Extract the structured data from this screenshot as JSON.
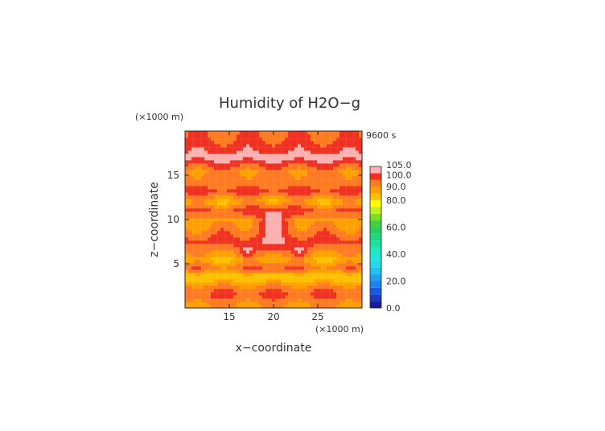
{
  "chart_data": {
    "type": "heatmap",
    "title": "Humidity of H2O−g",
    "xlabel": "x−coordinate",
    "ylabel": "z−coordinate",
    "x_unit_label": "(×1000 m)",
    "y_unit_label": "(×1000 m)",
    "time_label": "9600 s",
    "xlim": [
      10,
      30
    ],
    "ylim": [
      0,
      20
    ],
    "x_ticks": [
      {
        "value": 15,
        "label": "15"
      },
      {
        "value": 20,
        "label": "20"
      },
      {
        "value": 25,
        "label": "25"
      }
    ],
    "y_ticks": [
      {
        "value": 5,
        "label": "5"
      },
      {
        "value": 10,
        "label": "10"
      },
      {
        "value": 15,
        "label": "15"
      }
    ],
    "colorbar": {
      "labels": [
        {
          "value": 0,
          "label": "0.0"
        },
        {
          "value": 20,
          "label": "20.0"
        },
        {
          "value": 40,
          "label": "40.0"
        },
        {
          "value": 60,
          "label": "60.0"
        },
        {
          "value": 80,
          "label": "80.0"
        },
        {
          "value": 90,
          "label": "90.0"
        },
        {
          "value": 100,
          "label": "100.0"
        },
        {
          "value": 105,
          "label": "105.0"
        }
      ],
      "bands": [
        {
          "from": 0,
          "to": 5,
          "color": "#1a1aa0"
        },
        {
          "from": 5,
          "to": 10,
          "color": "#1a3ac0"
        },
        {
          "from": 10,
          "to": 15,
          "color": "#1a5ae0"
        },
        {
          "from": 15,
          "to": 20,
          "color": "#2080f0"
        },
        {
          "from": 20,
          "to": 25,
          "color": "#20a0f0"
        },
        {
          "from": 25,
          "to": 30,
          "color": "#20c0f0"
        },
        {
          "from": 30,
          "to": 35,
          "color": "#20d8e8"
        },
        {
          "from": 35,
          "to": 40,
          "color": "#20e8d8"
        },
        {
          "from": 40,
          "to": 45,
          "color": "#20e8c0"
        },
        {
          "from": 45,
          "to": 50,
          "color": "#20e0a0"
        },
        {
          "from": 50,
          "to": 55,
          "color": "#20d880"
        },
        {
          "from": 55,
          "to": 60,
          "color": "#20d060"
        },
        {
          "from": 60,
          "to": 65,
          "color": "#40d040"
        },
        {
          "from": 65,
          "to": 70,
          "color": "#80e020"
        },
        {
          "from": 70,
          "to": 75,
          "color": "#c0f020"
        },
        {
          "from": 75,
          "to": 80,
          "color": "#ffff00"
        },
        {
          "from": 80,
          "to": 85,
          "color": "#ffc000"
        },
        {
          "from": 85,
          "to": 90,
          "color": "#ffa000"
        },
        {
          "from": 90,
          "to": 95,
          "color": "#ff7a20"
        },
        {
          "from": 95,
          "to": 100,
          "color": "#f03020"
        },
        {
          "from": 100,
          "to": 105,
          "color": "#ffb0b0"
        }
      ]
    },
    "field": {
      "description_levels": "approximate humidity (%) estimated from the contour colors",
      "layers": [
        {
          "z": 19.5,
          "value": 94
        },
        {
          "z": 18.5,
          "value": 97
        },
        {
          "z": 17.0,
          "value": 102
        },
        {
          "z": 15.5,
          "value": 91
        },
        {
          "z": 14.0,
          "value": 93
        },
        {
          "z": 13.2,
          "value": 97
        },
        {
          "z": 12.0,
          "value": 86
        },
        {
          "z": 11.0,
          "value": 96
        },
        {
          "z": 10.0,
          "value": 88
        },
        {
          "z": 8.5,
          "value": 93
        },
        {
          "z": 7.5,
          "value": 97
        },
        {
          "z": 6.5,
          "value": 91
        },
        {
          "z": 5.5,
          "value": 85
        },
        {
          "z": 4.5,
          "value": 93
        },
        {
          "z": 3.5,
          "value": 80
        },
        {
          "z": 2.5,
          "value": 91
        },
        {
          "z": 1.5,
          "value": 96
        },
        {
          "z": 0.5,
          "value": 90
        }
      ],
      "colors": {
        "pink": "#ffb0b0",
        "red": "#f03020",
        "dark_orange": "#ff7a20",
        "orange": "#ffa000",
        "light_orange": "#ffc000",
        "yellow": "#ffff00"
      }
    }
  }
}
